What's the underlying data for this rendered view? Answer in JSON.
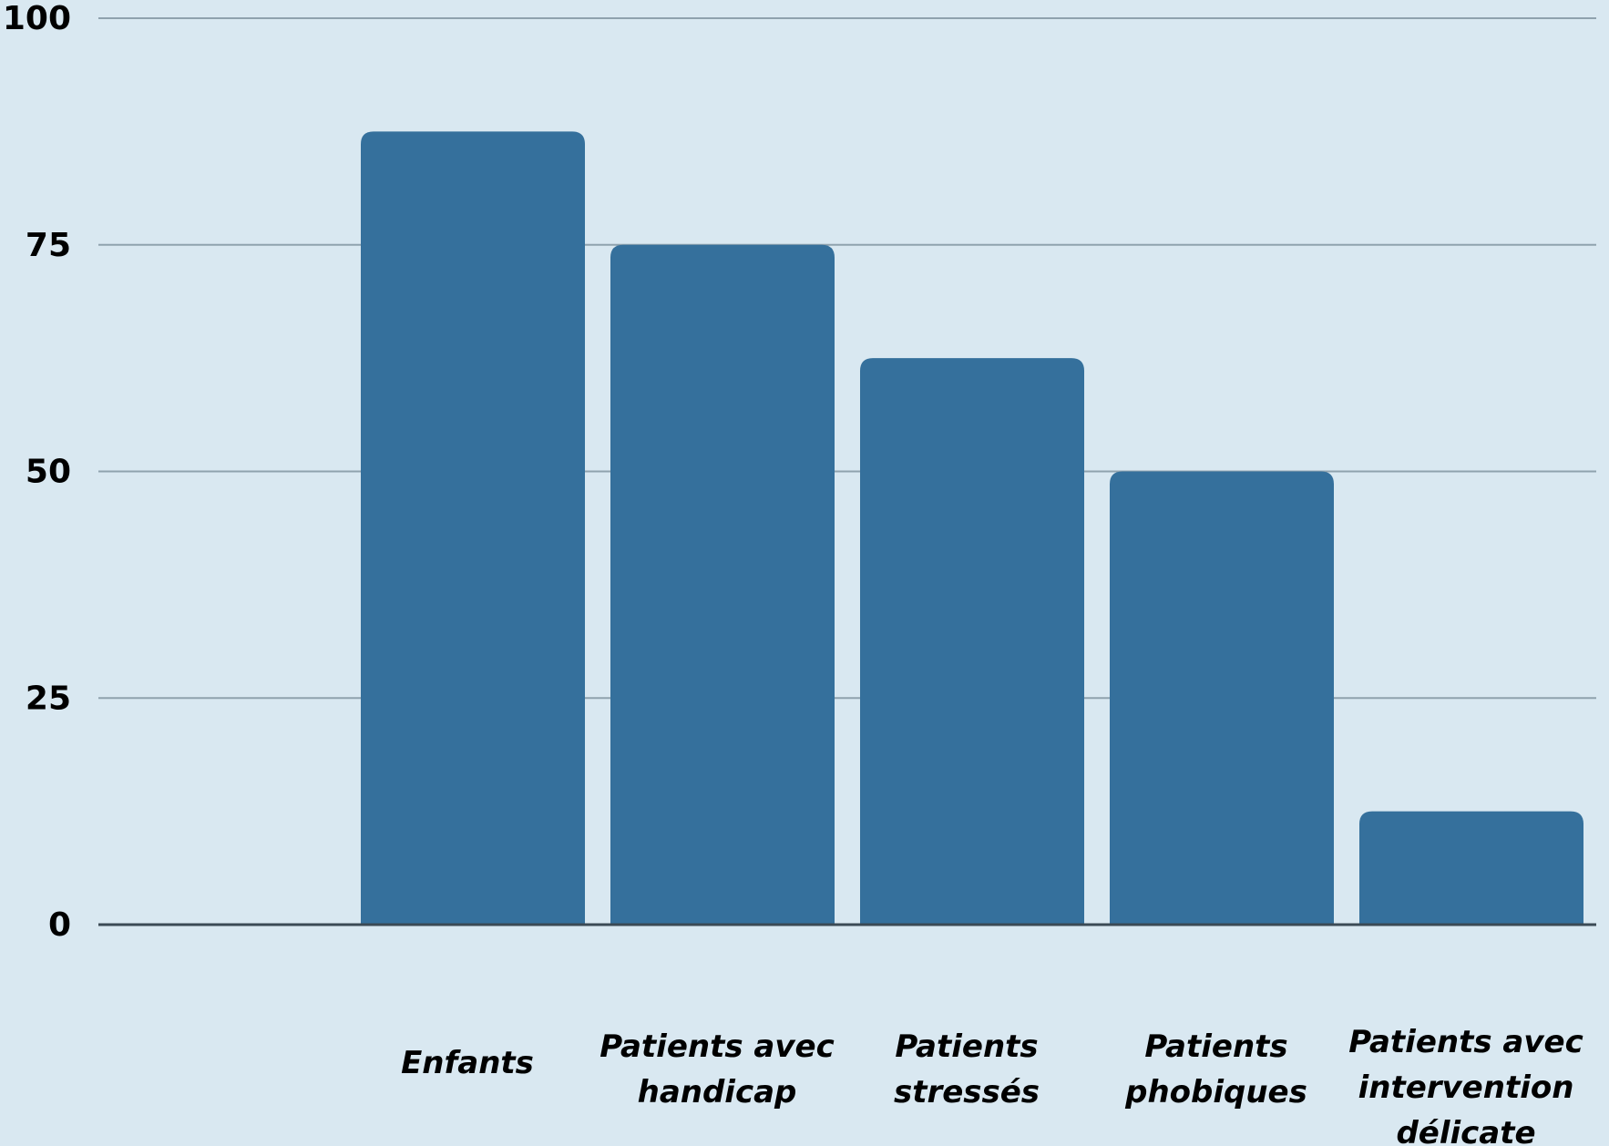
{
  "chart_data": {
    "type": "bar",
    "categories": [
      "",
      "Enfants",
      "Patients avec handicap",
      "Patients stressés",
      "Patients phobiques",
      "Patients avec intervention délicate"
    ],
    "category_lines": [
      [],
      [
        "Enfants"
      ],
      [
        "Patients avec",
        "handicap"
      ],
      [
        "Patients",
        "stressés"
      ],
      [
        "Patients",
        "phobiques"
      ],
      [
        "Patients avec",
        "intervention",
        "délicate"
      ]
    ],
    "values": [
      null,
      87.5,
      75,
      62.5,
      50,
      12.5
    ],
    "yticks": [
      0,
      25,
      50,
      75,
      100
    ],
    "ylim": [
      0,
      100
    ],
    "title": "",
    "xlabel": "",
    "ylabel": "",
    "grid": true,
    "legend": "none",
    "colors": {
      "background": "#d9e8f1",
      "bar": "#35709c",
      "grid": "#8fa2ae",
      "axis": "#3b4a55",
      "text": "#000000"
    }
  }
}
